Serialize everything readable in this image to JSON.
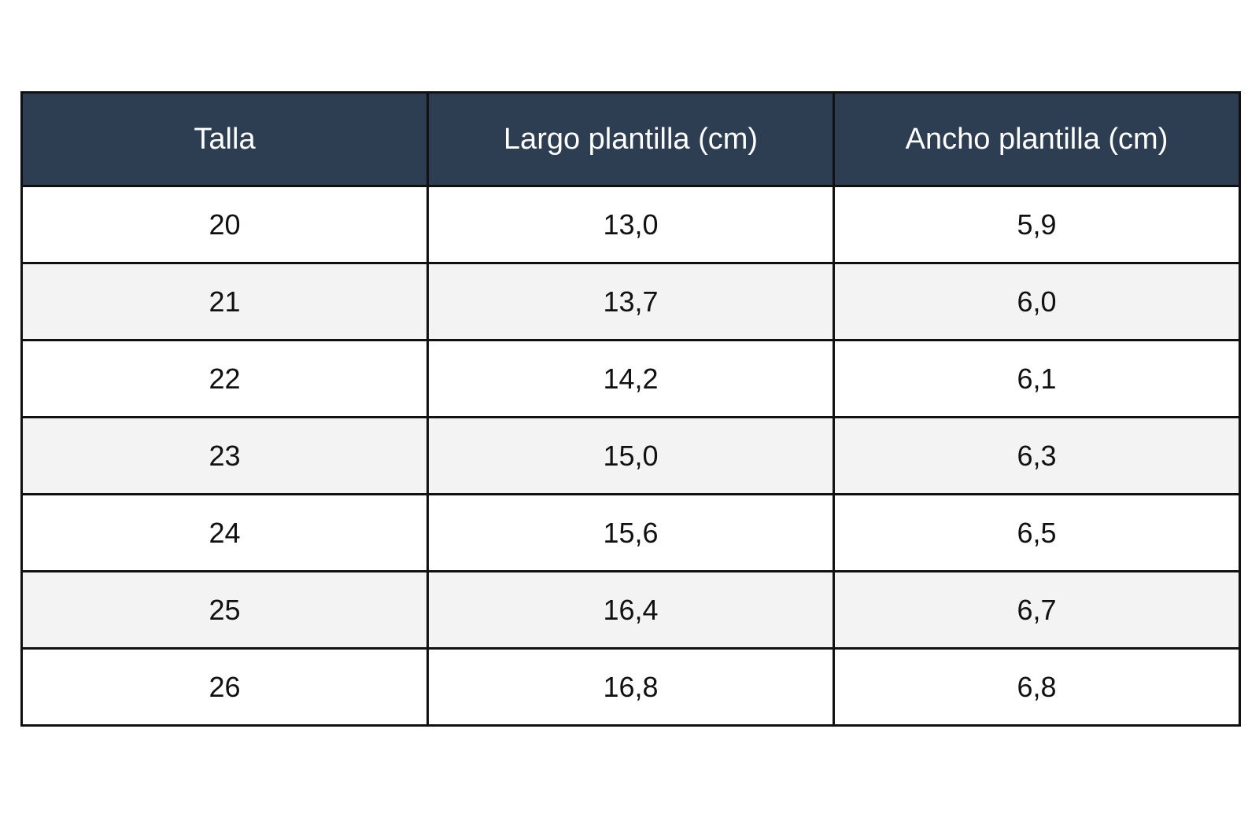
{
  "table": {
    "headers": [
      "Talla",
      "Largo plantilla (cm)",
      "Ancho plantilla (cm)"
    ],
    "rows": [
      [
        "20",
        "13,0",
        "5,9"
      ],
      [
        "21",
        "13,7",
        "6,0"
      ],
      [
        "22",
        "14,2",
        "6,1"
      ],
      [
        "23",
        "15,0",
        "6,3"
      ],
      [
        "24",
        "15,6",
        "6,5"
      ],
      [
        "25",
        "16,4",
        "6,7"
      ],
      [
        "26",
        "16,8",
        "6,8"
      ]
    ]
  },
  "colors": {
    "header_background": "#2e3e52",
    "header_text": "#ffffff",
    "row_alt_background": "#f2f3f2",
    "border": "#111111"
  }
}
